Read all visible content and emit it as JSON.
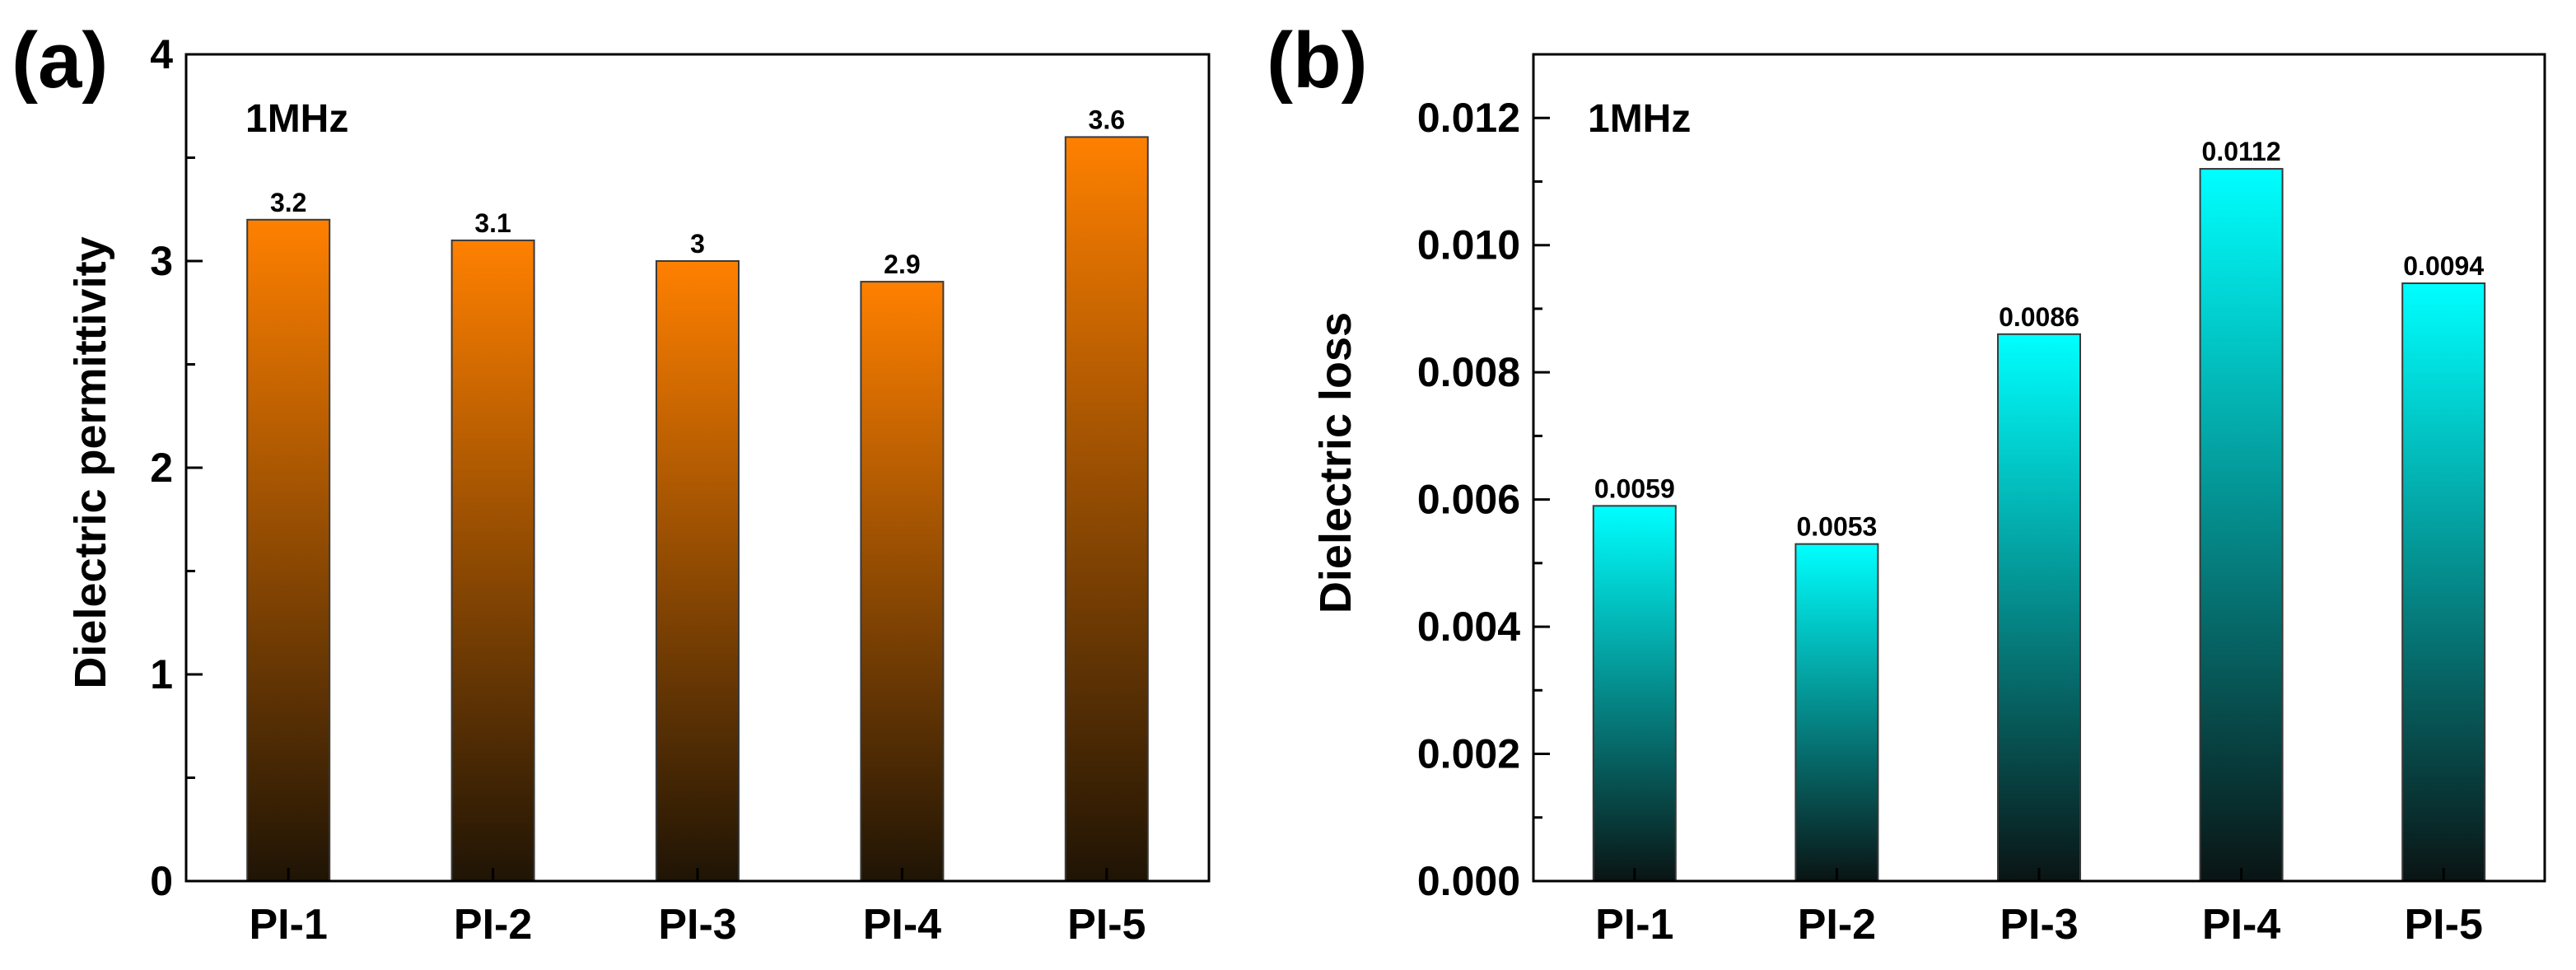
{
  "chart_data": [
    {
      "type": "bar",
      "panel_label": "(a)",
      "annotation": "1MHz",
      "title": "",
      "xlabel": "",
      "ylabel": "Dielectric permittivity",
      "categories": [
        "PI-1",
        "PI-2",
        "PI-3",
        "PI-4",
        "PI-5"
      ],
      "values": [
        3.2,
        3.1,
        3.0,
        2.9,
        3.6
      ],
      "data_labels": [
        "3.2",
        "3.1",
        "3",
        "2.9",
        "3.6"
      ],
      "ylim": [
        0,
        4
      ],
      "yticks": [
        0,
        1,
        2,
        3,
        4
      ],
      "ytick_labels": [
        "0",
        "1",
        "2",
        "3",
        "4"
      ],
      "grid": false,
      "bar_color_top": "#ff8000",
      "bar_color_bottom": "#1f1405"
    },
    {
      "type": "bar",
      "panel_label": "(b)",
      "annotation": "1MHz",
      "title": "",
      "xlabel": "",
      "ylabel": "Dielectric loss",
      "categories": [
        "PI-1",
        "PI-2",
        "PI-3",
        "PI-4",
        "PI-5"
      ],
      "values": [
        0.0059,
        0.0053,
        0.0086,
        0.0112,
        0.0094
      ],
      "data_labels": [
        "0.0059",
        "0.0053",
        "0.0086",
        "0.0112",
        "0.0094"
      ],
      "ylim": [
        0,
        0.013
      ],
      "yticks": [
        0,
        0.002,
        0.004,
        0.006,
        0.008,
        0.01,
        0.012
      ],
      "ytick_labels": [
        "0.000",
        "0.002",
        "0.004",
        "0.006",
        "0.008",
        "0.010",
        "0.012"
      ],
      "grid": false,
      "bar_color_top": "#00ffff",
      "bar_color_bottom": "#0a1414"
    }
  ]
}
